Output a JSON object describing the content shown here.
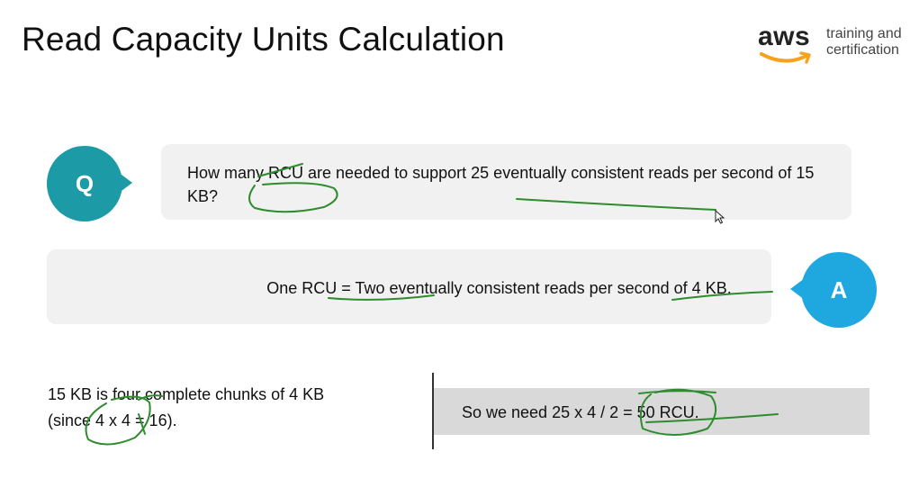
{
  "slide": {
    "title": "Read Capacity Units Calculation"
  },
  "logo": {
    "wordmark": "aws",
    "tagline_line1": "training and",
    "tagline_line2": "certification",
    "accent_color": "#f7a21b"
  },
  "question": {
    "badge": "Q",
    "badge_color": "#1c9aa6",
    "text": "How many RCU are needed to support 25 eventually consistent reads per second of 15 KB?"
  },
  "answer": {
    "badge": "A",
    "badge_color": "#1fa8df",
    "text": "One RCU = Two eventually consistent reads per second of 4 KB."
  },
  "working": {
    "line1": "15 KB is four complete chunks of 4 KB",
    "line2": "(since 4 x 4 = 16)."
  },
  "result": {
    "text": "So we need 25 x 4 / 2 = 50 RCU."
  },
  "annotations": {
    "ink_color": "#2e8b2e"
  },
  "icons": {
    "pointer": "cursor-pointer-icon",
    "smile": "aws-smile-icon"
  }
}
